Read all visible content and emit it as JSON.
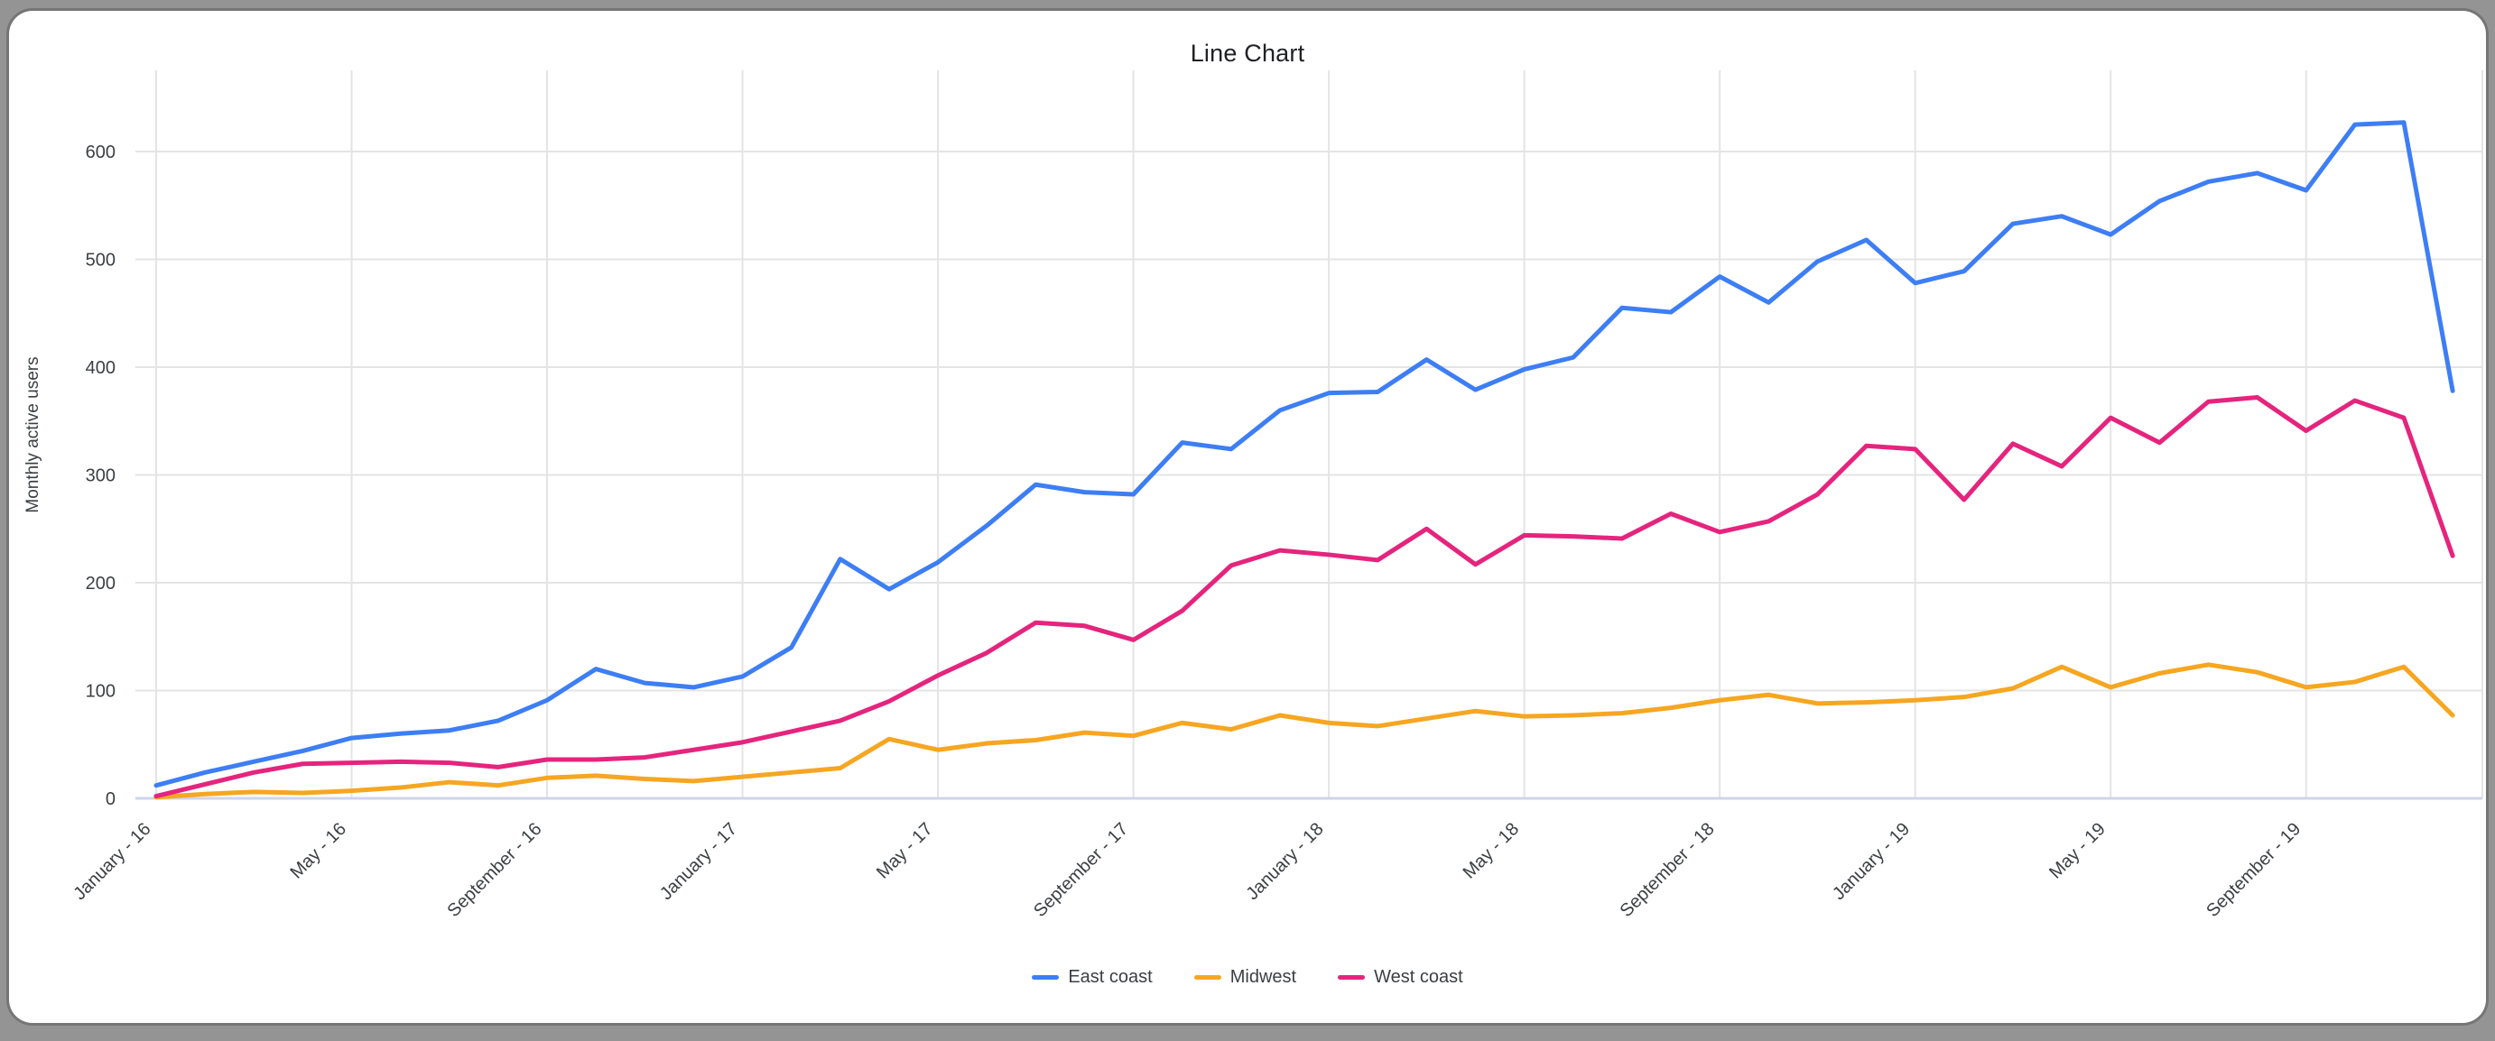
{
  "window": {
    "frame_color": "#949494",
    "card_background": "#ffffff"
  },
  "chart_data": {
    "type": "line",
    "title": "Line Chart",
    "ylabel": "Monthly active users",
    "xlabel": "",
    "ylim": [
      0,
      650
    ],
    "y_ticks": [
      0,
      100,
      200,
      300,
      400,
      500,
      600
    ],
    "grid": true,
    "legend_position": "bottom",
    "axis_text_color": "#3c4043",
    "gridline_color": "#e4e4e4",
    "baseline_color": "#ccd5ec",
    "x_tick_every": 4,
    "x_tick_labels": [
      "January - 16",
      "May - 16",
      "September - 16",
      "January - 17",
      "May - 17",
      "September - 17",
      "January - 18",
      "May - 18",
      "September - 18",
      "January - 19",
      "May - 19",
      "September - 19"
    ],
    "months": [
      "January - 16",
      "February - 16",
      "March - 16",
      "April - 16",
      "May - 16",
      "June - 16",
      "July - 16",
      "August - 16",
      "September - 16",
      "October - 16",
      "November - 16",
      "December - 16",
      "January - 17",
      "February - 17",
      "March - 17",
      "April - 17",
      "May - 17",
      "June - 17",
      "July - 17",
      "August - 17",
      "September - 17",
      "October - 17",
      "November - 17",
      "December - 17",
      "January - 18",
      "February - 18",
      "March - 18",
      "April - 18",
      "May - 18",
      "June - 18",
      "July - 18",
      "August - 18",
      "September - 18",
      "October - 18",
      "November - 18",
      "December - 18",
      "January - 19",
      "February - 19",
      "March - 19",
      "April - 19",
      "May - 19",
      "June - 19",
      "July - 19",
      "August - 19",
      "September - 19",
      "October - 19",
      "November - 19",
      "December - 19"
    ],
    "series": [
      {
        "name": "East coast",
        "color": "#3d7ef5",
        "values": [
          12,
          24,
          34,
          44,
          56,
          60,
          63,
          72,
          91,
          120,
          107,
          103,
          113,
          140,
          222,
          194,
          219,
          253,
          291,
          284,
          282,
          330,
          324,
          360,
          376,
          377,
          407,
          379,
          398,
          409,
          455,
          451,
          484,
          460,
          498,
          518,
          478,
          489,
          533,
          540,
          523,
          554,
          572,
          580,
          564,
          625,
          627,
          378
        ]
      },
      {
        "name": "Midwest",
        "color": "#f6a621",
        "values": [
          1,
          4,
          6,
          5,
          7,
          10,
          15,
          12,
          19,
          21,
          18,
          16,
          20,
          24,
          28,
          55,
          45,
          51,
          54,
          61,
          58,
          70,
          64,
          77,
          70,
          67,
          74,
          81,
          76,
          77,
          79,
          84,
          91,
          96,
          88,
          89,
          91,
          94,
          102,
          122,
          103,
          116,
          124,
          117,
          103,
          108,
          122,
          77
        ]
      },
      {
        "name": "West coast",
        "color": "#e5247d",
        "values": [
          2,
          13,
          24,
          32,
          33,
          34,
          33,
          29,
          36,
          36,
          38,
          45,
          52,
          62,
          72,
          90,
          114,
          135,
          163,
          160,
          147,
          174,
          216,
          230,
          226,
          221,
          250,
          217,
          244,
          243,
          241,
          264,
          247,
          257,
          282,
          327,
          324,
          277,
          329,
          308,
          353,
          330,
          368,
          372,
          341,
          369,
          353,
          225
        ]
      }
    ]
  }
}
